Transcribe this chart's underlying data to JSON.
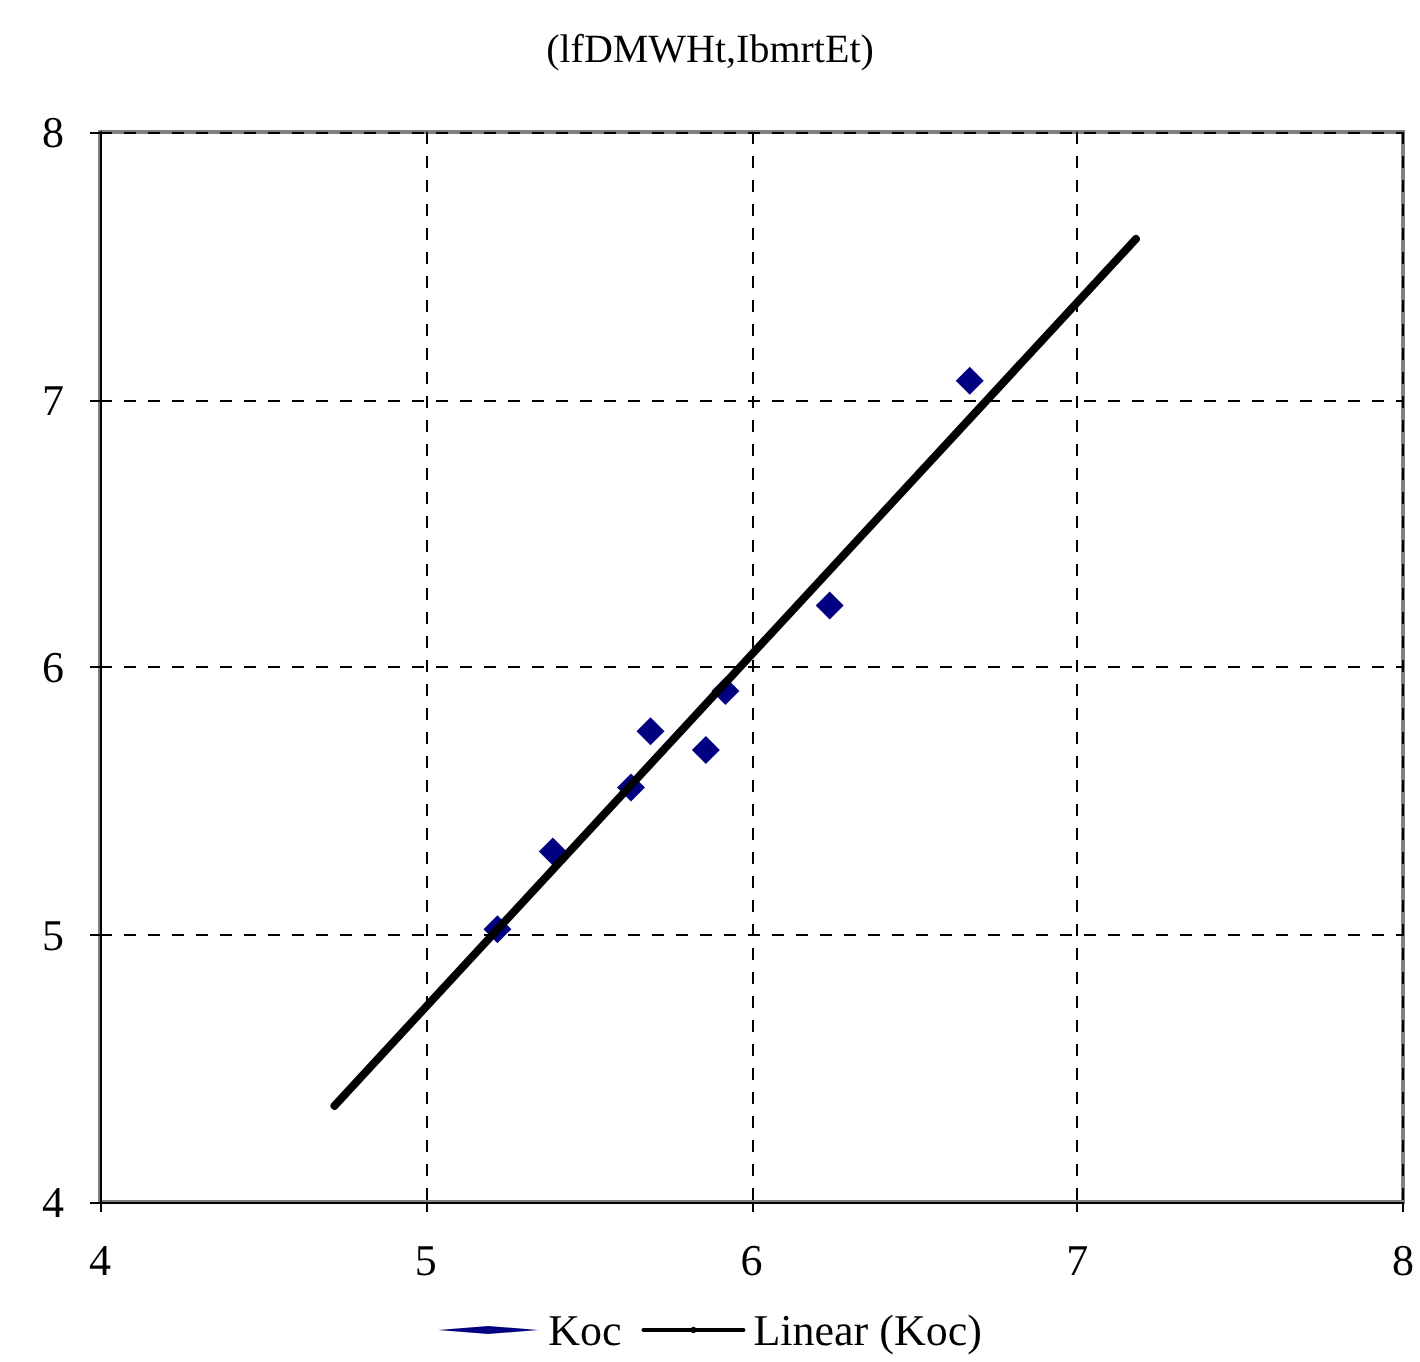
{
  "chart_data": {
    "type": "scatter",
    "title": "(lfDMWHt,IbmrtEt)",
    "xlim": [
      4,
      8
    ],
    "xticks": [
      4,
      5,
      6,
      7,
      8
    ],
    "ylim": [
      4,
      8
    ],
    "yticks": [
      4,
      5,
      6,
      7,
      8
    ],
    "grid": true,
    "legend": "bottom",
    "series": [
      {
        "name": "Koc",
        "marker": "diamond",
        "color": "#000080",
        "x": [
          5.22,
          5.39,
          5.63,
          5.69,
          5.86,
          5.92,
          6.24,
          6.67
        ],
        "values": [
          5.02,
          5.31,
          5.55,
          5.76,
          5.69,
          5.91,
          6.23,
          7.07
        ]
      },
      {
        "name": "Linear (Koc)",
        "type": "line",
        "marker": "none",
        "line_style": "solid",
        "color": "#000000",
        "x": [
          4.72,
          7.18
        ],
        "values": [
          4.36,
          7.6
        ]
      }
    ]
  }
}
